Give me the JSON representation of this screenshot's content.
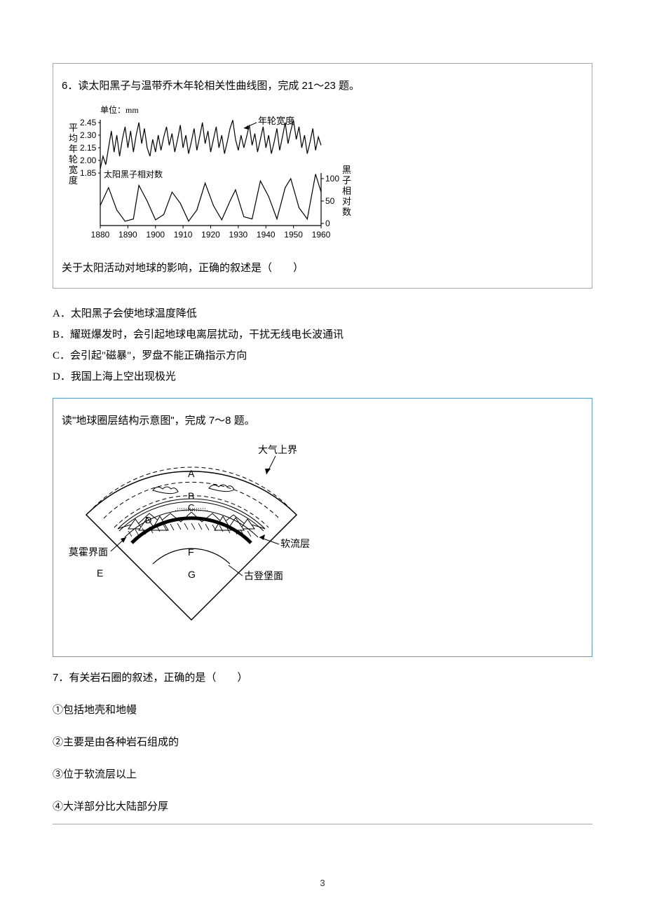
{
  "page_number": "3",
  "q6": {
    "title": "6．读太阳黑子与温带乔木年轮相关性曲线图，完成 21～23 题。",
    "subquestion": "关于太阳活动对地球的影响，正确的叙述是（　　）",
    "options": {
      "A": "A．太阳黑子会使地球温度降低",
      "B": "B．耀斑爆发时，会引起地球电离层扰动，干扰无线电长波通讯",
      "C": "C．会引起\"磁暴\"，罗盘不能正确指示方向",
      "D": "D．我国上海上空出现极光"
    },
    "chart": {
      "unit_label": "单位：mm",
      "y_left_label": "平均年轮宽度",
      "y_right_label": "黑子相对数",
      "legend_top": "年轮宽度",
      "legend_bottom": "太阳黑子相对数",
      "y_left_ticks": [
        "2.45",
        "2.30",
        "2.15",
        "2.00",
        "1.85"
      ],
      "y_right_ticks": [
        "100",
        "50",
        "0"
      ],
      "x_ticks": [
        "1880",
        "1890",
        "1900",
        "1910",
        "1920",
        "1930",
        "1940",
        "1950",
        "1960"
      ],
      "colors": {
        "line": "#000000",
        "text": "#000000",
        "background": "#ffffff"
      },
      "tree_ring_data": [
        {
          "x": 1880,
          "y": 1.9
        },
        {
          "x": 1881,
          "y": 2.05
        },
        {
          "x": 1882,
          "y": 1.95
        },
        {
          "x": 1883,
          "y": 2.15
        },
        {
          "x": 1884,
          "y": 2.35
        },
        {
          "x": 1885,
          "y": 2.1
        },
        {
          "x": 1886,
          "y": 2.3
        },
        {
          "x": 1887,
          "y": 2.05
        },
        {
          "x": 1888,
          "y": 2.25
        },
        {
          "x": 1889,
          "y": 2.4
        },
        {
          "x": 1890,
          "y": 2.15
        },
        {
          "x": 1891,
          "y": 2.35
        },
        {
          "x": 1892,
          "y": 2.1
        },
        {
          "x": 1893,
          "y": 2.3
        },
        {
          "x": 1894,
          "y": 2.45
        },
        {
          "x": 1895,
          "y": 2.2
        },
        {
          "x": 1896,
          "y": 2.38
        },
        {
          "x": 1897,
          "y": 2.15
        },
        {
          "x": 1898,
          "y": 2.05
        },
        {
          "x": 1899,
          "y": 2.25
        },
        {
          "x": 1900,
          "y": 2.1
        },
        {
          "x": 1901,
          "y": 2.3
        },
        {
          "x": 1902,
          "y": 2.12
        },
        {
          "x": 1903,
          "y": 2.28
        },
        {
          "x": 1904,
          "y": 2.4
        },
        {
          "x": 1905,
          "y": 2.18
        },
        {
          "x": 1906,
          "y": 2.32
        },
        {
          "x": 1907,
          "y": 2.1
        },
        {
          "x": 1908,
          "y": 2.25
        },
        {
          "x": 1909,
          "y": 2.42
        },
        {
          "x": 1910,
          "y": 2.15
        },
        {
          "x": 1911,
          "y": 2.3
        },
        {
          "x": 1912,
          "y": 2.08
        },
        {
          "x": 1913,
          "y": 2.22
        },
        {
          "x": 1914,
          "y": 2.38
        },
        {
          "x": 1915,
          "y": 2.12
        },
        {
          "x": 1916,
          "y": 2.28
        },
        {
          "x": 1917,
          "y": 2.45
        },
        {
          "x": 1918,
          "y": 2.2
        },
        {
          "x": 1919,
          "y": 2.35
        },
        {
          "x": 1920,
          "y": 2.1
        },
        {
          "x": 1921,
          "y": 2.25
        },
        {
          "x": 1922,
          "y": 2.4
        },
        {
          "x": 1923,
          "y": 2.15
        },
        {
          "x": 1924,
          "y": 2.3
        },
        {
          "x": 1925,
          "y": 2.08
        },
        {
          "x": 1926,
          "y": 2.22
        },
        {
          "x": 1927,
          "y": 2.38
        },
        {
          "x": 1928,
          "y": 2.48
        },
        {
          "x": 1929,
          "y": 2.25
        },
        {
          "x": 1930,
          "y": 2.12
        },
        {
          "x": 1931,
          "y": 2.3
        },
        {
          "x": 1932,
          "y": 2.15
        },
        {
          "x": 1933,
          "y": 2.28
        },
        {
          "x": 1934,
          "y": 2.42
        },
        {
          "x": 1935,
          "y": 2.18
        },
        {
          "x": 1936,
          "y": 2.32
        },
        {
          "x": 1937,
          "y": 2.1
        },
        {
          "x": 1938,
          "y": 2.25
        },
        {
          "x": 1939,
          "y": 2.4
        },
        {
          "x": 1940,
          "y": 2.15
        },
        {
          "x": 1941,
          "y": 2.3
        },
        {
          "x": 1942,
          "y": 2.08
        },
        {
          "x": 1943,
          "y": 2.22
        },
        {
          "x": 1944,
          "y": 2.38
        },
        {
          "x": 1945,
          "y": 2.12
        },
        {
          "x": 1946,
          "y": 2.28
        },
        {
          "x": 1947,
          "y": 2.45
        },
        {
          "x": 1948,
          "y": 2.2
        },
        {
          "x": 1949,
          "y": 2.35
        },
        {
          "x": 1950,
          "y": 2.48
        },
        {
          "x": 1951,
          "y": 2.25
        },
        {
          "x": 1952,
          "y": 2.4
        },
        {
          "x": 1953,
          "y": 2.15
        },
        {
          "x": 1954,
          "y": 2.3
        },
        {
          "x": 1955,
          "y": 2.08
        },
        {
          "x": 1956,
          "y": 2.22
        },
        {
          "x": 1957,
          "y": 2.38
        },
        {
          "x": 1958,
          "y": 2.12
        },
        {
          "x": 1959,
          "y": 2.28
        },
        {
          "x": 1960,
          "y": 2.18
        }
      ],
      "sunspot_data": [
        {
          "x": 1880,
          "y": 40
        },
        {
          "x": 1883,
          "y": 80
        },
        {
          "x": 1886,
          "y": 30
        },
        {
          "x": 1889,
          "y": 5
        },
        {
          "x": 1892,
          "y": 10
        },
        {
          "x": 1894,
          "y": 85
        },
        {
          "x": 1897,
          "y": 50
        },
        {
          "x": 1900,
          "y": 8
        },
        {
          "x": 1903,
          "y": 20
        },
        {
          "x": 1906,
          "y": 70
        },
        {
          "x": 1909,
          "y": 45
        },
        {
          "x": 1912,
          "y": 5
        },
        {
          "x": 1915,
          "y": 30
        },
        {
          "x": 1918,
          "y": 90
        },
        {
          "x": 1921,
          "y": 40
        },
        {
          "x": 1924,
          "y": 8
        },
        {
          "x": 1927,
          "y": 50
        },
        {
          "x": 1929,
          "y": 75
        },
        {
          "x": 1932,
          "y": 15
        },
        {
          "x": 1935,
          "y": 10
        },
        {
          "x": 1938,
          "y": 95
        },
        {
          "x": 1941,
          "y": 60
        },
        {
          "x": 1944,
          "y": 10
        },
        {
          "x": 1947,
          "y": 80
        },
        {
          "x": 1949,
          "y": 100
        },
        {
          "x": 1952,
          "y": 35
        },
        {
          "x": 1955,
          "y": 10
        },
        {
          "x": 1958,
          "y": 110
        },
        {
          "x": 1960,
          "y": 70
        }
      ]
    }
  },
  "q7_intro": {
    "title": "读\"地球圈层结构示意图\"，完成 7～8 题。",
    "diagram": {
      "labels": {
        "atmosphere_top": "大气上界",
        "moho": "莫霍界面",
        "asthenosphere": "软流层",
        "gutenberg": "古登堡面",
        "A": "A",
        "B": "B",
        "C": "C",
        "D": "D",
        "E": "E",
        "F": "F",
        "G": "G"
      },
      "colors": {
        "line": "#000000",
        "dashed": "#000000",
        "fill": "#ffffff"
      }
    }
  },
  "q7": {
    "title": "7．有关岩石圈的叙述，正确的是（　　）",
    "statements": {
      "s1": "①包括地壳和地幔",
      "s2": "②主要是由各种岩石组成的",
      "s3": "③位于软流层以上",
      "s4": "④大洋部分比大陆部分厚"
    }
  }
}
